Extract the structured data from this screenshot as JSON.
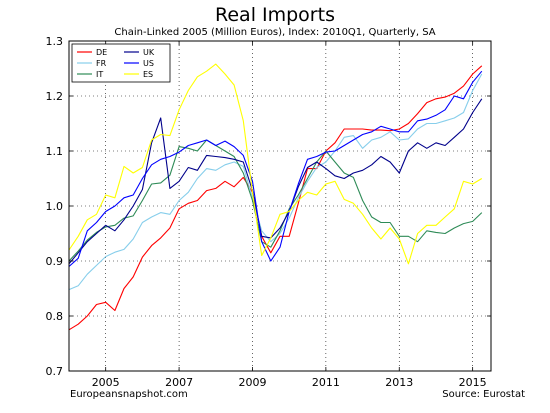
{
  "chart_data": {
    "type": "line",
    "title": "Real Imports",
    "subtitle": "Chain-Linked 2005 (Million Euros), Index: 2010Q1, Quarterly, SA",
    "xlabel": "",
    "ylabel": "",
    "xlim": [
      2004.0,
      2015.5
    ],
    "ylim": [
      0.7,
      1.3
    ],
    "x_ticks": [
      2005,
      2007,
      2009,
      2011,
      2013,
      2015
    ],
    "y_ticks": [
      0.7,
      0.8,
      0.9,
      1.0,
      1.1,
      1.2,
      1.3
    ],
    "grid": true,
    "legend_position": "top-left",
    "x": [
      "2004Q1",
      "2004Q2",
      "2004Q3",
      "2004Q4",
      "2005Q1",
      "2005Q2",
      "2005Q3",
      "2005Q4",
      "2006Q1",
      "2006Q2",
      "2006Q3",
      "2006Q4",
      "2007Q1",
      "2007Q2",
      "2007Q3",
      "2007Q4",
      "2008Q1",
      "2008Q2",
      "2008Q3",
      "2008Q4",
      "2009Q1",
      "2009Q2",
      "2009Q3",
      "2009Q4",
      "2010Q1",
      "2010Q2",
      "2010Q3",
      "2010Q4",
      "2011Q1",
      "2011Q2",
      "2011Q3",
      "2011Q4",
      "2012Q1",
      "2012Q2",
      "2012Q3",
      "2012Q4",
      "2013Q1",
      "2013Q2",
      "2013Q3",
      "2013Q4",
      "2014Q1",
      "2014Q2",
      "2014Q3",
      "2014Q4",
      "2015Q1",
      "2015Q2"
    ],
    "series": [
      {
        "name": "DE",
        "color": "#ff0000",
        "values": [
          0.775,
          0.785,
          0.8,
          0.821,
          0.825,
          0.81,
          0.85,
          0.871,
          0.907,
          0.928,
          0.942,
          0.96,
          0.995,
          1.005,
          1.01,
          1.028,
          1.032,
          1.045,
          1.035,
          1.052,
          1.025,
          0.945,
          0.915,
          0.945,
          0.945,
          1.005,
          1.068,
          1.068,
          1.1,
          1.115,
          1.14,
          1.14,
          1.14,
          1.138,
          1.138,
          1.137,
          1.14,
          1.15,
          1.168,
          1.188,
          1.195,
          1.198,
          1.205,
          1.218,
          1.24,
          1.255
        ]
      },
      {
        "name": "FR",
        "color": "#87ceeb",
        "values": [
          0.848,
          0.855,
          0.876,
          0.892,
          0.908,
          0.916,
          0.921,
          0.94,
          0.97,
          0.98,
          0.988,
          0.985,
          1.01,
          1.025,
          1.05,
          1.068,
          1.065,
          1.075,
          1.08,
          1.072,
          1.015,
          0.955,
          0.935,
          0.95,
          0.978,
          1.015,
          1.045,
          1.07,
          1.08,
          1.1,
          1.125,
          1.128,
          1.105,
          1.12,
          1.125,
          1.135,
          1.12,
          1.122,
          1.14,
          1.15,
          1.15,
          1.155,
          1.16,
          1.17,
          1.21,
          1.24
        ]
      },
      {
        "name": "IT",
        "color": "#2e8b57",
        "values": [
          0.9,
          0.918,
          0.938,
          0.952,
          0.962,
          0.965,
          0.978,
          0.982,
          1.01,
          1.04,
          1.042,
          1.056,
          1.108,
          1.105,
          1.1,
          1.12,
          1.11,
          1.1,
          1.09,
          1.06,
          1.01,
          0.935,
          0.925,
          0.955,
          0.995,
          1.02,
          1.05,
          1.08,
          1.1,
          1.08,
          1.06,
          1.052,
          1.01,
          0.98,
          0.97,
          0.97,
          0.945,
          0.945,
          0.935,
          0.955,
          0.952,
          0.95,
          0.96,
          0.968,
          0.972,
          0.988
        ]
      },
      {
        "name": "UK",
        "color": "#00008b",
        "values": [
          0.895,
          0.915,
          0.935,
          0.95,
          0.965,
          0.955,
          0.975,
          1.0,
          1.03,
          1.115,
          1.16,
          1.032,
          1.045,
          1.07,
          1.065,
          1.092,
          1.09,
          1.088,
          1.085,
          1.08,
          1.028,
          0.945,
          0.942,
          0.96,
          0.99,
          1.035,
          1.07,
          1.08,
          1.068,
          1.055,
          1.05,
          1.06,
          1.065,
          1.075,
          1.09,
          1.08,
          1.06,
          1.1,
          1.115,
          1.105,
          1.115,
          1.11,
          1.125,
          1.14,
          1.17,
          1.195
        ]
      },
      {
        "name": "US",
        "color": "#0000ff",
        "values": [
          0.89,
          0.905,
          0.955,
          0.97,
          0.99,
          1.0,
          1.015,
          1.02,
          1.05,
          1.075,
          1.085,
          1.09,
          1.098,
          1.11,
          1.115,
          1.12,
          1.11,
          1.118,
          1.108,
          1.092,
          1.045,
          0.935,
          0.9,
          0.925,
          0.99,
          1.04,
          1.085,
          1.09,
          1.098,
          1.1,
          1.11,
          1.12,
          1.13,
          1.135,
          1.145,
          1.14,
          1.135,
          1.135,
          1.155,
          1.158,
          1.165,
          1.175,
          1.2,
          1.195,
          1.225,
          1.245
        ]
      },
      {
        "name": "ES",
        "color": "#ffff00",
        "values": [
          0.92,
          0.945,
          0.975,
          0.985,
          1.02,
          1.015,
          1.072,
          1.06,
          1.07,
          1.12,
          1.13,
          1.128,
          1.175,
          1.21,
          1.235,
          1.245,
          1.258,
          1.24,
          1.22,
          1.155,
          1.025,
          0.91,
          0.942,
          0.985,
          0.99,
          1.01,
          1.025,
          1.02,
          1.04,
          1.045,
          1.012,
          1.005,
          0.985,
          0.96,
          0.94,
          0.96,
          0.94,
          0.895,
          0.95,
          0.965,
          0.965,
          0.98,
          0.995,
          1.045,
          1.04,
          1.05
        ]
      }
    ]
  },
  "footer": {
    "left": "Europeansnapshot.com",
    "right": "Source: Eurostat"
  }
}
